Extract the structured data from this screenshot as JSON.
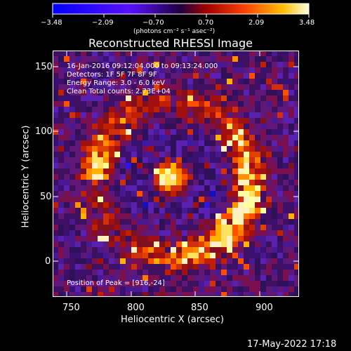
{
  "colorbar": {
    "ticks": [
      "−3.48",
      "−2.09",
      "−0.70",
      "0.70",
      "2.09",
      "3.48"
    ],
    "units": "(photons cm⁻² s⁻¹ asec⁻²)",
    "min": -3.48,
    "max": 3.48
  },
  "plot": {
    "title": "Reconstructed RHESSI Image",
    "annotations": {
      "time": "16-Jan-2016 09:12:04.000 to 09:13:24.000",
      "detectors": "Detectors: 1F 5F 7F 8F 9F",
      "energy": "Energy Range: 3.0 - 6.0 keV",
      "clean": "Clean     Total counts: 2.73E+04",
      "peak": "Position of Peak = [916,-24]"
    },
    "x_axis": {
      "label": "Heliocentric X (arcsec)",
      "ticks": [
        "750",
        "800",
        "850",
        "900"
      ]
    },
    "y_axis": {
      "label": "Heliocentric Y (arcsec)",
      "ticks": [
        "150",
        "100",
        "50",
        "0"
      ]
    }
  },
  "footer": {
    "date": "17-May-2022 17:18"
  }
}
